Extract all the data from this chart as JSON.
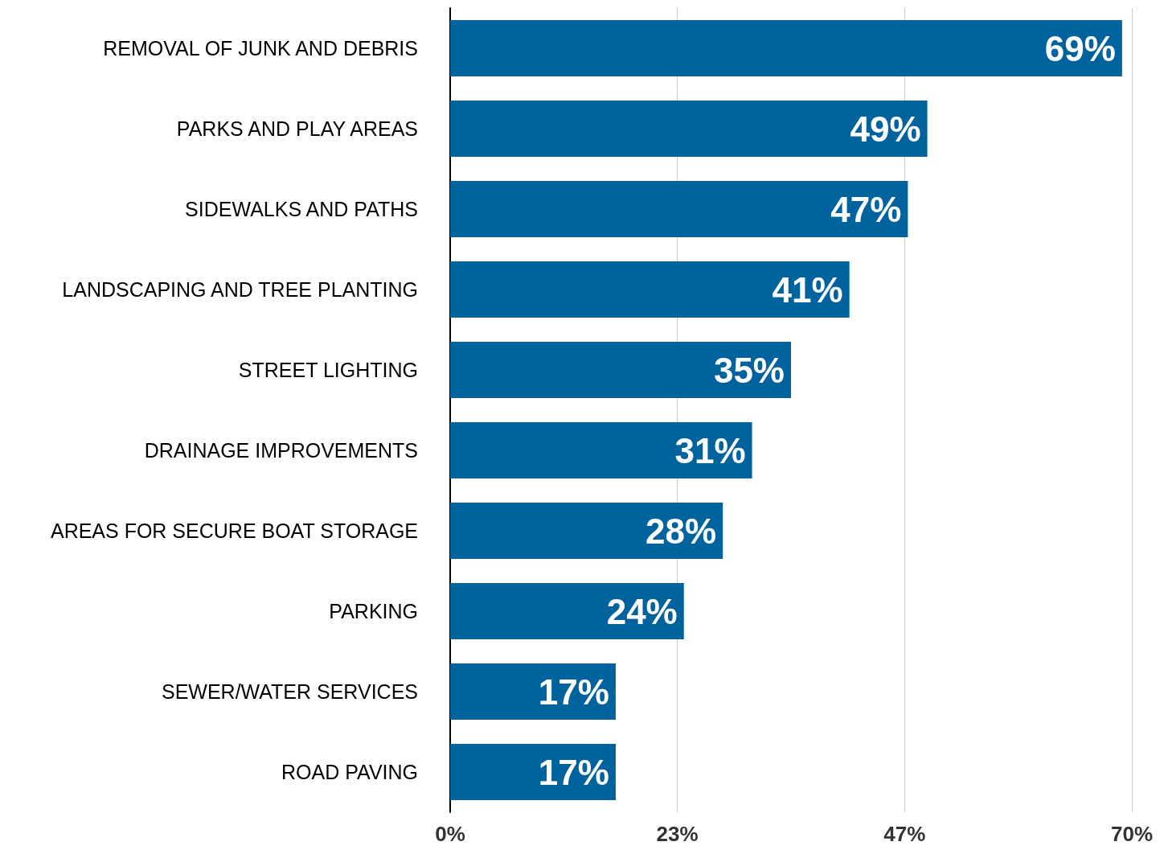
{
  "chart_data": {
    "type": "bar",
    "orientation": "horizontal",
    "categories": [
      "REMOVAL OF JUNK AND DEBRIS",
      "PARKS AND PLAY AREAS",
      "SIDEWALKS AND PATHS",
      "LANDSCAPING AND TREE PLANTING",
      "STREET LIGHTING",
      "DRAINAGE IMPROVEMENTS",
      "AREAS FOR SECURE BOAT STORAGE",
      "PARKING",
      "SEWER/WATER SERVICES",
      "ROAD PAVING"
    ],
    "values": [
      69,
      49,
      47,
      41,
      35,
      31,
      28,
      24,
      17,
      17
    ],
    "value_labels": [
      "69%",
      "49%",
      "47%",
      "41%",
      "35%",
      "31%",
      "28%",
      "24%",
      "17%",
      "17%"
    ],
    "color": "#00639e",
    "xlim": [
      0,
      70
    ],
    "xticks": [
      {
        "value": 0,
        "label": "0%"
      },
      {
        "value": 23.33,
        "label": "23%"
      },
      {
        "value": 46.67,
        "label": "47%"
      },
      {
        "value": 70,
        "label": "70%"
      }
    ],
    "grid": "x"
  }
}
